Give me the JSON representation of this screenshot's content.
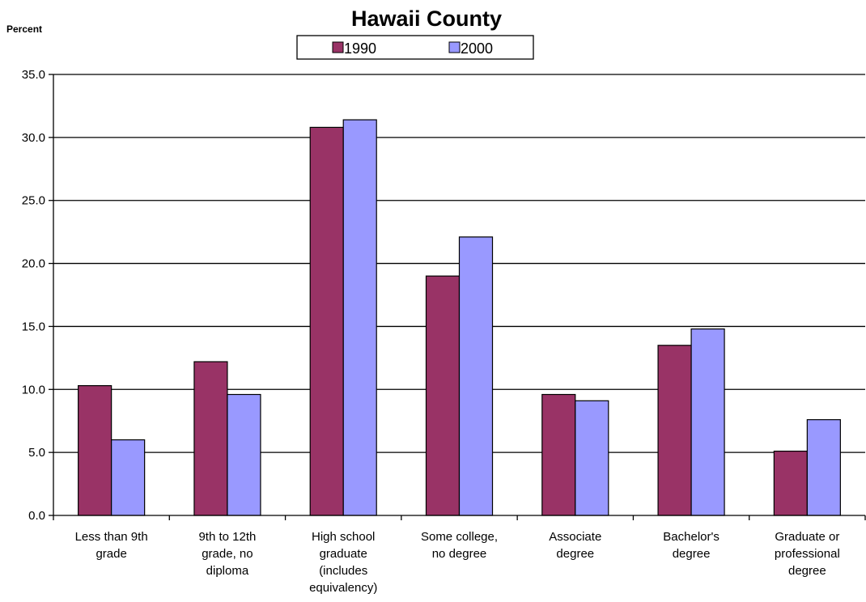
{
  "chart_data": {
    "type": "bar",
    "title": "Hawaii County",
    "ylabel": "Percent",
    "xlabel": "",
    "ylim": [
      0,
      35
    ],
    "yticks": [
      "0.0",
      "5.0",
      "10.0",
      "15.0",
      "20.0",
      "25.0",
      "30.0",
      "35.0"
    ],
    "grid": true,
    "legend_position": "top-center",
    "categories": [
      [
        "Less than 9th",
        "grade"
      ],
      [
        "9th to 12th",
        "grade, no",
        "diploma"
      ],
      [
        "High school",
        "graduate",
        "(includes",
        "equivalency)"
      ],
      [
        "Some college,",
        "no degree"
      ],
      [
        "Associate",
        "degree"
      ],
      [
        "Bachelor's",
        "degree"
      ],
      [
        "Graduate or",
        "professional",
        "degree"
      ]
    ],
    "series": [
      {
        "name": "1990",
        "color": "#993366",
        "values": [
          10.3,
          12.2,
          30.8,
          19.0,
          9.6,
          13.5,
          5.1
        ]
      },
      {
        "name": "2000",
        "color": "#9999FF",
        "values": [
          6.0,
          9.6,
          31.4,
          22.1,
          9.1,
          14.8,
          7.6
        ]
      }
    ]
  }
}
